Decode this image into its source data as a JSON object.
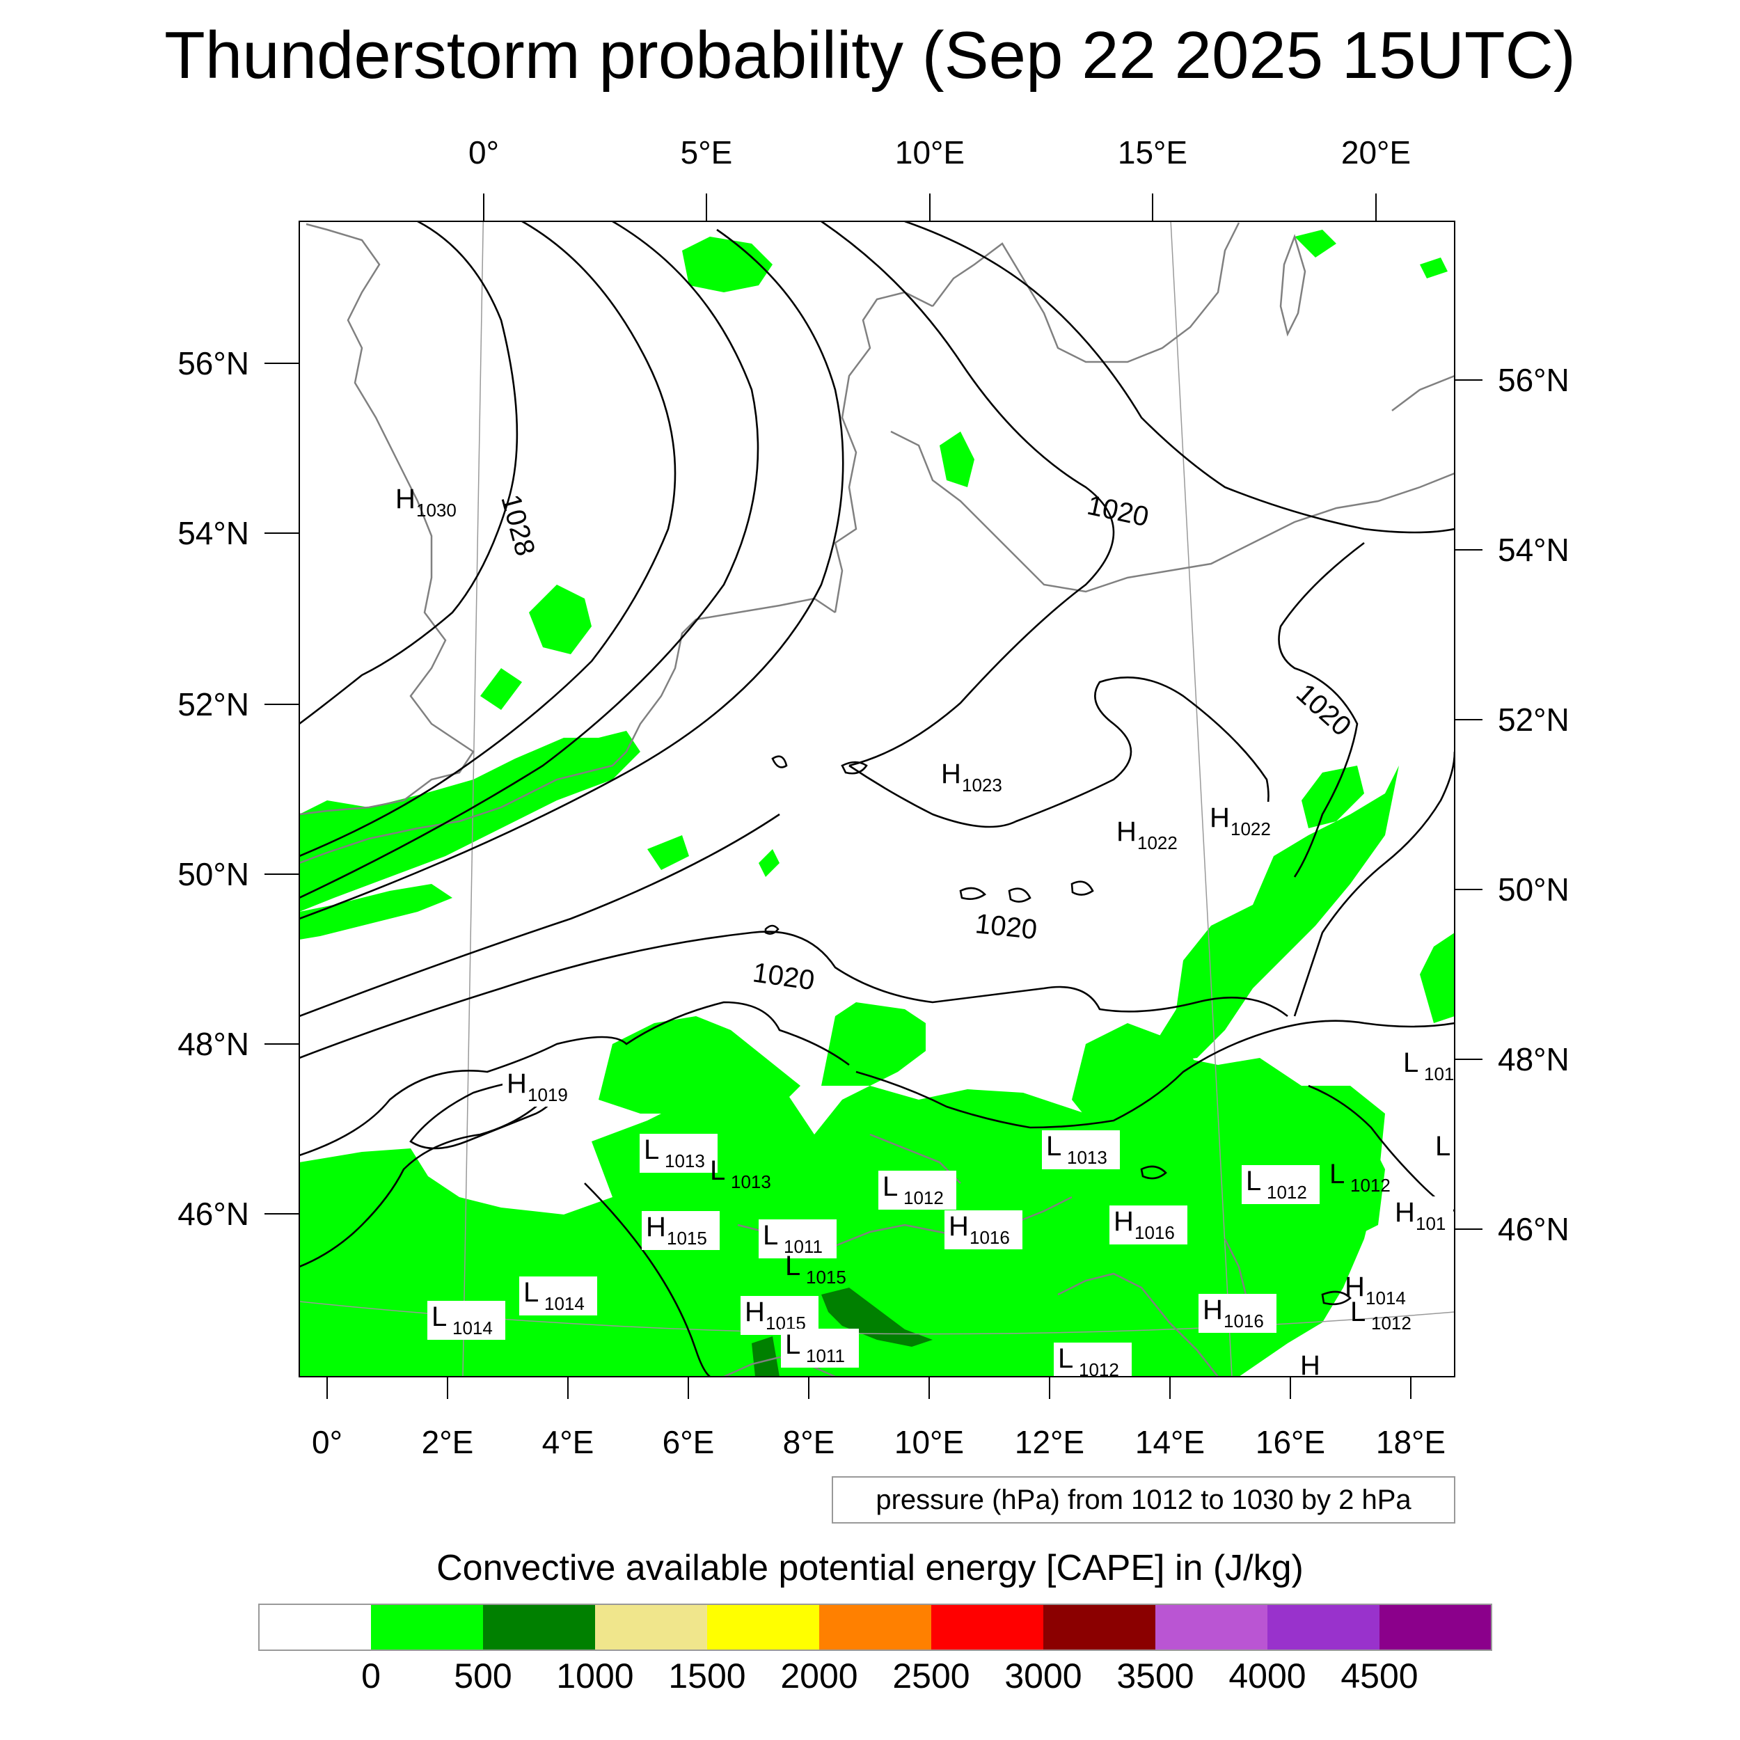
{
  "title": "Thunderstorm probability (Sep 22 2025 15UTC)",
  "top_lon_labels": [
    "0°",
    "5°E",
    "10°E",
    "15°E",
    "20°E"
  ],
  "bottom_lon_labels": [
    "0°",
    "2°E",
    "4°E",
    "6°E",
    "8°E",
    "10°E",
    "12°E",
    "14°E",
    "16°E",
    "18°E"
  ],
  "left_lat_labels": [
    "56°N",
    "54°N",
    "52°N",
    "50°N",
    "48°N",
    "46°N"
  ],
  "right_lat_labels": [
    "56°N",
    "54°N",
    "52°N",
    "50°N",
    "48°N",
    "46°N"
  ],
  "contour_info": "pressure (hPa) from 1012 to 1030 by 2 hPa",
  "colorbar_title": "Convective available potential energy [CAPE] in (J/kg)",
  "colorbar": {
    "colors": [
      "#ffffff",
      "#00ff00",
      "#008000",
      "#f0e68c",
      "#ffff00",
      "#ff8000",
      "#ff0000",
      "#8b0000",
      "#ba55d3",
      "#9932cc",
      "#8b008b"
    ],
    "ticks": [
      "0",
      "500",
      "1000",
      "1500",
      "2000",
      "2500",
      "3000",
      "3500",
      "4000",
      "4500"
    ]
  },
  "colors": {
    "land_outline": "#808080",
    "isobar": "#000000",
    "cape_light": "#00ff00",
    "cape_dark": "#008000"
  },
  "isobar_labels": [
    "1028",
    "1020",
    "1020",
    "1020",
    "1020"
  ],
  "pressure_centers": [
    {
      "kind": "H",
      "value": "1030"
    },
    {
      "kind": "H",
      "value": "1023"
    },
    {
      "kind": "H",
      "value": "1022"
    },
    {
      "kind": "H",
      "value": "1022"
    },
    {
      "kind": "H",
      "value": "1019"
    },
    {
      "kind": "L",
      "value": "101"
    },
    {
      "kind": "L",
      "value": ""
    },
    {
      "kind": "L",
      "value": "1013"
    },
    {
      "kind": "L",
      "value": "1013"
    },
    {
      "kind": "L",
      "value": "1013"
    },
    {
      "kind": "L",
      "value": "1012"
    },
    {
      "kind": "L",
      "value": "1012"
    },
    {
      "kind": "L",
      "value": "1012"
    },
    {
      "kind": "H",
      "value": "101"
    },
    {
      "kind": "H",
      "value": "1015"
    },
    {
      "kind": "L",
      "value": "1011"
    },
    {
      "kind": "L",
      "value": "1015"
    },
    {
      "kind": "H",
      "value": "1016"
    },
    {
      "kind": "H",
      "value": "1016"
    },
    {
      "kind": "L",
      "value": "1014"
    },
    {
      "kind": "L",
      "value": "1014"
    },
    {
      "kind": "H",
      "value": "1015"
    },
    {
      "kind": "L",
      "value": "1011"
    },
    {
      "kind": "H",
      "value": "1016"
    },
    {
      "kind": "H",
      "value": "1014"
    },
    {
      "kind": "L",
      "value": "1012"
    },
    {
      "kind": "L",
      "value": "1012"
    },
    {
      "kind": "H",
      "value": ""
    }
  ]
}
